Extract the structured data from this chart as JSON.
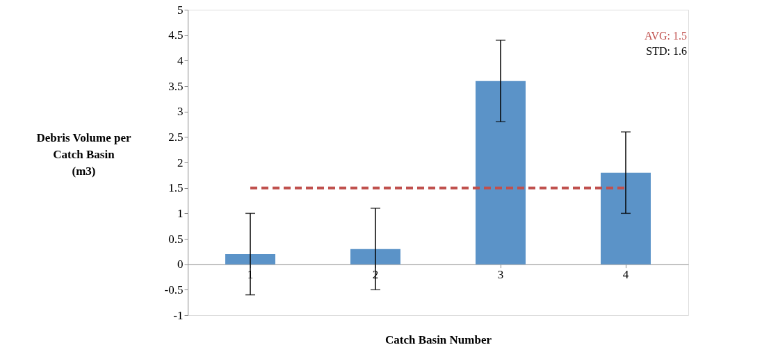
{
  "chart_data": {
    "type": "bar",
    "xlabel": "Catch Basin Number",
    "ylabel": "Debris Volume per\nCatch Basin\n(m3)",
    "categories": [
      "1",
      "2",
      "3",
      "4"
    ],
    "series": [
      {
        "color": "#5b93c8",
        "values": [
          0.2,
          0.3,
          3.6,
          1.8
        ],
        "errors": [
          0.8,
          0.8,
          0.8,
          0.8
        ]
      }
    ],
    "ylim": [
      -1,
      5
    ],
    "yticks": [
      -1,
      -0.5,
      0,
      0.5,
      1,
      1.5,
      2,
      2.5,
      3,
      3.5,
      4,
      4.5,
      5
    ],
    "grid": false,
    "ref_lines": [
      {
        "axis": "y",
        "value": 1.5,
        "label": "AVG: 1.5",
        "color": "#c0504d",
        "line_style": "dashed"
      }
    ],
    "annotations": [
      "STD: 1.6"
    ]
  }
}
